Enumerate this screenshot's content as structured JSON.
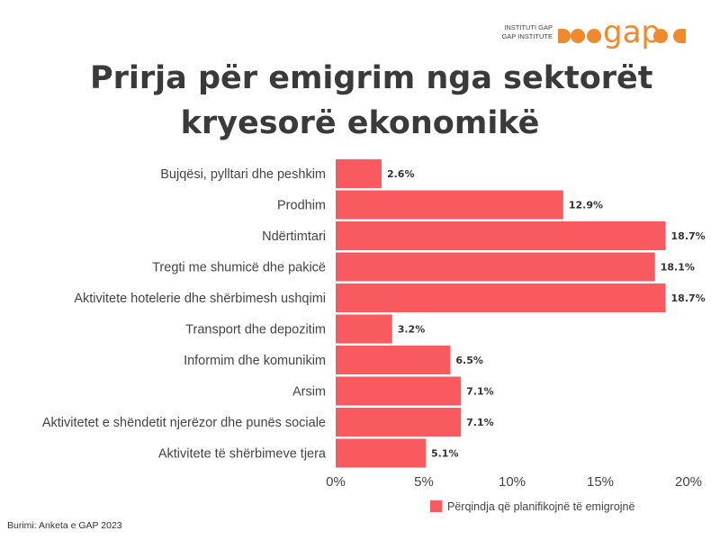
{
  "brand": {
    "small_line1": "INSTITUTI GAP",
    "small_line2": "GAP INSTITUTE",
    "wordmark": "gap"
  },
  "title_line1": "Prirja për emigrim nga sektorët",
  "title_line2": "kryesorë ekonomikë",
  "source": "Burimi: Anketa e GAP 2023",
  "colors": {
    "bar": "#f85a5f",
    "text": "#444444",
    "title": "#3a3a3a",
    "brand": "#f08a2d"
  },
  "chart_data": {
    "type": "bar",
    "orientation": "horizontal",
    "categories": [
      "Bujqësi, pylltari dhe peshkim",
      "Prodhim",
      "Ndërtimtari",
      "Tregti me shumicë dhe pakicë",
      "Aktivitete hotelerie dhe shërbimesh ushqimi",
      "Transport dhe depozitim",
      "Informim dhe komunikim",
      "Arsim",
      "Aktivitetet e shëndetit njerëzor dhe punës sociale",
      "Aktivitete të shërbimeve tjera"
    ],
    "values": [
      2.6,
      12.9,
      18.7,
      18.1,
      18.7,
      3.2,
      6.5,
      7.1,
      7.1,
      5.1
    ],
    "value_labels": [
      "2.6%",
      "12.9%",
      "18.7%",
      "18.1%",
      "18.7%",
      "3.2%",
      "6.5%",
      "7.1%",
      "7.1%",
      "5.1%"
    ],
    "xlim": [
      0,
      20
    ],
    "xticks": [
      0,
      5,
      10,
      15,
      20
    ],
    "xtick_labels": [
      "0%",
      "5%",
      "10%",
      "15%",
      "20%"
    ],
    "legend": {
      "label": "Përqindja që planifikojnë të emigrojnë",
      "position": "bottom-right"
    },
    "grid": false
  }
}
